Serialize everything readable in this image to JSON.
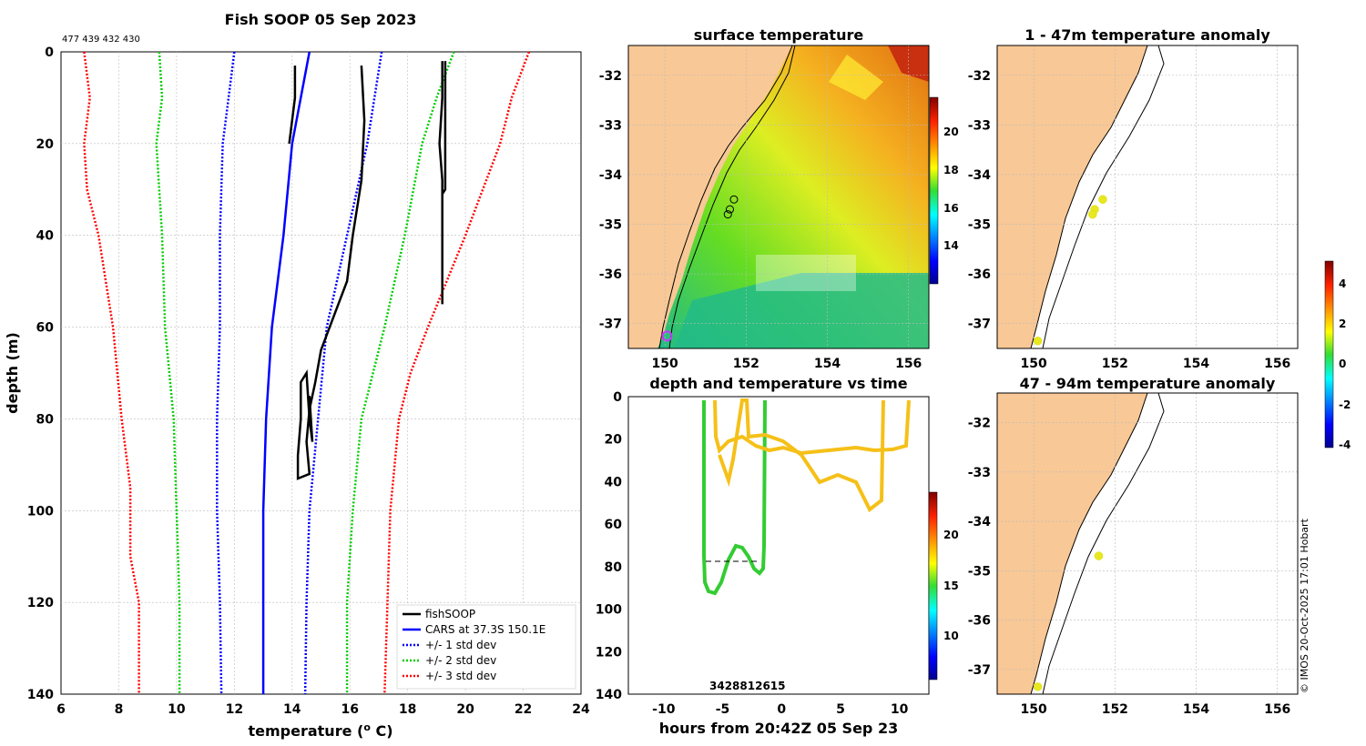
{
  "chart_data": [
    {
      "type": "line",
      "title": "Fish SOOP 05 Sep 2023",
      "xlabel": "temperature (",
      "xlabel_sup": "o",
      "xlabel_tail": " C)",
      "ylabel": "depth (m)",
      "xlim": [
        6,
        24
      ],
      "ylim": [
        140,
        0
      ],
      "xticks": [
        "6",
        "8",
        "10",
        "12",
        "14",
        "16",
        "18",
        "20",
        "22",
        "24"
      ],
      "yticks": [
        "0",
        "20",
        "40",
        "60",
        "80",
        "100",
        "120",
        "140"
      ],
      "top_annotation": "477 439 432 430",
      "legend": [
        {
          "label": "fishSOOP",
          "color": "#000000",
          "style": "solid"
        },
        {
          "label": "CARS at 37.3S 150.1E",
          "color": "#0000ff",
          "style": "solid"
        },
        {
          "label": "+/- 1 std dev",
          "color": "#0000ff",
          "style": "dotted"
        },
        {
          "label": "+/- 2 std dev",
          "color": "#00cc00",
          "style": "dotted"
        },
        {
          "label": "+/- 3 std dev",
          "color": "#ff0000",
          "style": "dotted"
        }
      ],
      "series": [
        {
          "name": "CARS mean",
          "color": "#0000ff",
          "style": "solid",
          "points": [
            [
              14.6,
              0
            ],
            [
              14.3,
              10
            ],
            [
              14.0,
              20
            ],
            [
              13.7,
              40
            ],
            [
              13.3,
              60
            ],
            [
              13.1,
              80
            ],
            [
              13.0,
              100
            ],
            [
              13.0,
              120
            ],
            [
              13.0,
              140
            ]
          ]
        },
        {
          "name": "-1 std",
          "color": "#0000ff",
          "style": "dotted",
          "points": [
            [
              12.0,
              0
            ],
            [
              11.8,
              10
            ],
            [
              11.6,
              20
            ],
            [
              11.5,
              40
            ],
            [
              11.5,
              60
            ],
            [
              11.4,
              80
            ],
            [
              11.4,
              100
            ],
            [
              11.5,
              120
            ],
            [
              11.55,
              140
            ]
          ]
        },
        {
          "name": "+1 std",
          "color": "#0000ff",
          "style": "dotted",
          "points": [
            [
              17.1,
              0
            ],
            [
              16.6,
              20
            ],
            [
              15.9,
              40
            ],
            [
              15.2,
              60
            ],
            [
              14.9,
              80
            ],
            [
              14.6,
              100
            ],
            [
              14.5,
              120
            ],
            [
              14.45,
              140
            ]
          ]
        },
        {
          "name": "-2 std",
          "color": "#00cc00",
          "style": "dotted",
          "points": [
            [
              9.4,
              0
            ],
            [
              9.5,
              10
            ],
            [
              9.3,
              20
            ],
            [
              9.5,
              40
            ],
            [
              9.6,
              60
            ],
            [
              9.9,
              80
            ],
            [
              10.0,
              100
            ],
            [
              10.1,
              120
            ],
            [
              10.1,
              140
            ]
          ]
        },
        {
          "name": "+2 std",
          "color": "#00cc00",
          "style": "dotted",
          "points": [
            [
              19.6,
              0
            ],
            [
              19.0,
              10
            ],
            [
              18.5,
              20
            ],
            [
              17.9,
              40
            ],
            [
              17.2,
              60
            ],
            [
              16.4,
              80
            ],
            [
              16.1,
              100
            ],
            [
              15.9,
              120
            ],
            [
              15.9,
              140
            ]
          ]
        },
        {
          "name": "-3 std",
          "color": "#ff0000",
          "style": "dotted",
          "points": [
            [
              6.8,
              0
            ],
            [
              7.0,
              10
            ],
            [
              6.8,
              20
            ],
            [
              6.9,
              30
            ],
            [
              7.3,
              40
            ],
            [
              7.8,
              60
            ],
            [
              8.1,
              80
            ],
            [
              8.4,
              95
            ],
            [
              8.4,
              110
            ],
            [
              8.7,
              120
            ],
            [
              8.7,
              140
            ]
          ]
        },
        {
          "name": "+3 std",
          "color": "#ff0000",
          "style": "dotted",
          "points": [
            [
              22.2,
              0
            ],
            [
              21.6,
              10
            ],
            [
              21.2,
              20
            ],
            [
              20.0,
              40
            ],
            [
              18.7,
              60
            ],
            [
              18.1,
              70
            ],
            [
              17.7,
              80
            ],
            [
              17.4,
              100
            ],
            [
              17.3,
              120
            ],
            [
              17.2,
              140
            ]
          ]
        },
        {
          "name": "fishSOOP profile 1",
          "color": "#000000",
          "style": "solid",
          "points": [
            [
              16.4,
              3
            ],
            [
              16.5,
              15
            ],
            [
              16.4,
              28
            ],
            [
              16.1,
              40
            ],
            [
              15.9,
              50
            ],
            [
              15.6,
              55
            ],
            [
              15.3,
              60
            ],
            [
              15.0,
              65
            ],
            [
              14.8,
              72
            ],
            [
              14.6,
              78
            ],
            [
              14.5,
              85
            ],
            [
              14.6,
              92
            ],
            [
              14.2,
              93
            ],
            [
              14.2,
              88
            ],
            [
              14.3,
              80
            ],
            [
              14.3,
              72
            ],
            [
              14.5,
              70
            ],
            [
              14.6,
              80
            ],
            [
              14.7,
              85
            ],
            [
              14.6,
              75
            ]
          ]
        },
        {
          "name": "fishSOOP profile 2",
          "color": "#000000",
          "style": "solid",
          "points": [
            [
              19.2,
              2
            ],
            [
              19.2,
              10
            ],
            [
              19.1,
              20
            ],
            [
              19.2,
              28
            ],
            [
              19.2,
              35
            ],
            [
              19.2,
              45
            ],
            [
              19.2,
              55
            ]
          ]
        },
        {
          "name": "fishSOOP profile 3",
          "color": "#000000",
          "style": "solid",
          "points": [
            [
              19.3,
              2
            ],
            [
              19.3,
              30
            ],
            [
              19.2,
              31
            ]
          ]
        },
        {
          "name": "fishSOOP profile 4",
          "color": "#000000",
          "style": "solid",
          "points": [
            [
              14.1,
              3
            ],
            [
              14.1,
              10
            ],
            [
              13.9,
              20
            ]
          ]
        }
      ]
    },
    {
      "type": "heatmap",
      "title": "surface temperature",
      "xlim": [
        149.1,
        156.5
      ],
      "ylim": [
        -37.5,
        -31.4
      ],
      "xticks": [
        "150",
        "152",
        "154",
        "156"
      ],
      "yticks": [
        "-32",
        "-33",
        "-34",
        "-35",
        "-36",
        "-37"
      ],
      "colorbar_ticks": [
        "14",
        "16",
        "18",
        "20"
      ],
      "markers": [
        [
          151.7,
          -34.5
        ],
        [
          151.6,
          -34.7
        ],
        [
          151.55,
          -34.8
        ],
        [
          150.05,
          -37.25
        ]
      ]
    },
    {
      "type": "scatter",
      "title": "depth and temperature vs time",
      "xlabel": "hours from 20:42Z 05 Sep 23",
      "xlim": [
        -13,
        12.5
      ],
      "ylim": [
        140,
        0
      ],
      "xticks": [
        "-10",
        "-5",
        "0",
        "5",
        "10"
      ],
      "yticks": [
        "0",
        "20",
        "40",
        "60",
        "80",
        "100",
        "120",
        "140"
      ],
      "colorbar_ticks": [
        "10",
        "15",
        "20"
      ],
      "bottom_annotation": "3428812615"
    },
    {
      "type": "scatter",
      "title": "1 - 47m temperature anomaly",
      "xlim": [
        149.1,
        156.5
      ],
      "ylim": [
        -37.5,
        -31.4
      ],
      "xticks": [
        "150",
        "152",
        "154",
        "156"
      ],
      "yticks": [
        "-32",
        "-33",
        "-34",
        "-35",
        "-36",
        "-37"
      ],
      "points": [
        [
          151.7,
          -34.5
        ],
        [
          151.5,
          -34.7
        ],
        [
          151.45,
          -34.8
        ],
        [
          150.1,
          -37.35
        ]
      ]
    },
    {
      "type": "scatter",
      "title": "47 - 94m temperature anomaly",
      "xlim": [
        149.1,
        156.5
      ],
      "ylim": [
        -37.5,
        -31.4
      ],
      "xticks": [
        "150",
        "152",
        "154",
        "156"
      ],
      "yticks": [
        "-32",
        "-33",
        "-34",
        "-35",
        "-36",
        "-37"
      ],
      "points": [
        [
          151.6,
          -34.7
        ],
        [
          150.1,
          -37.35
        ]
      ]
    }
  ],
  "anomaly_colorbar_ticks": [
    "4",
    "2",
    "0",
    "-2",
    "-4"
  ],
  "credit": "© IMOS 20-Oct-2025 17:01 Hobart"
}
